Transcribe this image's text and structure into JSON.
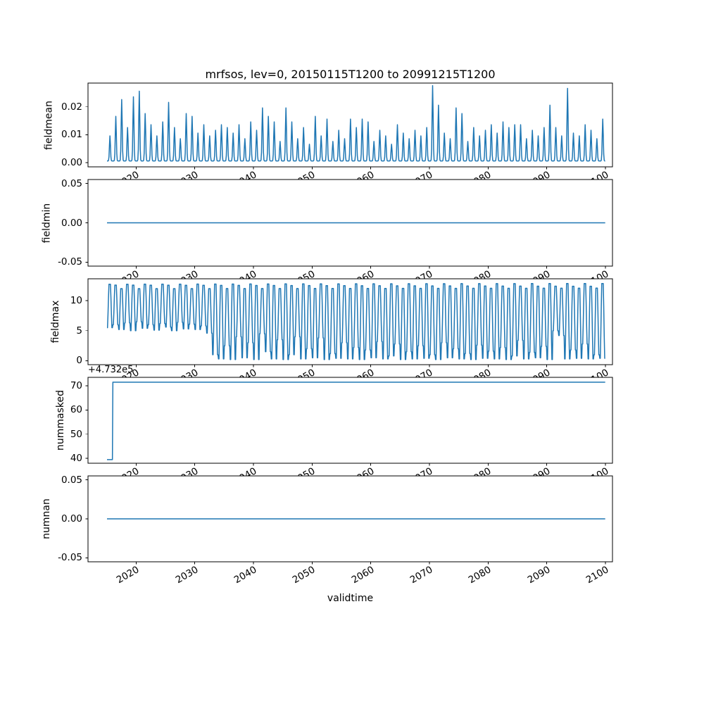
{
  "figure": {
    "title": "mrfsos, lev=0, 20150115T1200 to 20991215T1200",
    "xlabel": "validtime",
    "line_color": "#1f77b4",
    "background": "#ffffff"
  },
  "x_axis": {
    "xlim": [
      2011.8,
      2101.2
    ],
    "ticks": [
      2020,
      2030,
      2040,
      2050,
      2060,
      2070,
      2080,
      2090,
      2100
    ],
    "tick_labels": [
      "2020",
      "2030",
      "2040",
      "2050",
      "2060",
      "2070",
      "2080",
      "2090",
      "2100"
    ]
  },
  "chart_data": [
    {
      "type": "line",
      "name": "fieldmean",
      "ylabel": "fieldmean",
      "ylim": [
        -0.0015,
        0.0285
      ],
      "yticks": [
        0.0,
        0.01,
        0.02
      ],
      "ytick_labels": [
        "0.00",
        "0.01",
        "0.02"
      ],
      "x_start": 2015,
      "gen": "annual_spikes",
      "baseline": 0.0006,
      "center_month": 6,
      "sigma_months": 1.05,
      "peaks": [
        0.009,
        0.016,
        0.022,
        0.012,
        0.023,
        0.025,
        0.017,
        0.013,
        0.009,
        0.014,
        0.021,
        0.012,
        0.008,
        0.017,
        0.016,
        0.01,
        0.013,
        0.009,
        0.011,
        0.013,
        0.012,
        0.01,
        0.013,
        0.008,
        0.014,
        0.011,
        0.019,
        0.016,
        0.014,
        0.007,
        0.019,
        0.014,
        0.008,
        0.012,
        0.006,
        0.016,
        0.009,
        0.015,
        0.007,
        0.011,
        0.008,
        0.015,
        0.012,
        0.015,
        0.014,
        0.007,
        0.011,
        0.009,
        0.006,
        0.013,
        0.01,
        0.008,
        0.011,
        0.009,
        0.012,
        0.027,
        0.02,
        0.01,
        0.008,
        0.019,
        0.017,
        0.007,
        0.012,
        0.009,
        0.011,
        0.013,
        0.01,
        0.014,
        0.012,
        0.013,
        0.013,
        0.008,
        0.011,
        0.009,
        0.012,
        0.02,
        0.012,
        0.009,
        0.026,
        0.01,
        0.009,
        0.013,
        0.011,
        0.008,
        0.015
      ]
    },
    {
      "type": "line",
      "name": "fieldmin",
      "ylabel": "fieldmin",
      "ylim": [
        -0.055,
        0.055
      ],
      "yticks": [
        -0.05,
        0.0,
        0.05
      ],
      "ytick_labels": [
        "-0.05",
        "0.00",
        "0.05"
      ],
      "points": [
        [
          2015.04,
          0.0
        ],
        [
          2099.96,
          0.0
        ]
      ]
    },
    {
      "type": "line",
      "name": "fieldmax",
      "ylabel": "fieldmax",
      "ylim": [
        -0.65,
        13.65
      ],
      "yticks": [
        0,
        5,
        10
      ],
      "ytick_labels": [
        "0",
        "5",
        "10"
      ],
      "x_start": 2015,
      "gen": "annual_wave",
      "wave_gain": 1.5,
      "wave_offset": 0.25,
      "peak_base": 12.45,
      "peak_amp": 0.45,
      "peak_freq": 2.1,
      "peak_phase": 0.7,
      "troughs": [
        5.5,
        6.0,
        5.2,
        6.3,
        5.0,
        6.5,
        5.4,
        6.0,
        5.1,
        6.2,
        5.6,
        5.0,
        6.4,
        5.3,
        6.1,
        5.2,
        5.8,
        4.6,
        1.0,
        0.3,
        2.5,
        0.2,
        4.0,
        0.5,
        3.0,
        0.2,
        4.5,
        1.5,
        0.3,
        3.5,
        0.2,
        1.0,
        4.0,
        0.3,
        2.0,
        0.5,
        3.8,
        0.2,
        1.2,
        0.4,
        3.0,
        0.3,
        2.2,
        0.2,
        1.8,
        0.5,
        3.2,
        0.3,
        0.8,
        2.8,
        0.2,
        1.5,
        0.3,
        2.5,
        0.4,
        1.0,
        0.2,
        3.0,
        0.5,
        2.0,
        0.3,
        1.2,
        0.2,
        2.6,
        0.4,
        1.6,
        0.3,
        2.2,
        0.2,
        0.8,
        3.4,
        0.3,
        1.4,
        0.5,
        2.4,
        0.2,
        5.0,
        4.2,
        0.3,
        1.8,
        0.4,
        2.8,
        0.3,
        1.0,
        0.4
      ]
    },
    {
      "type": "line",
      "name": "nummasked",
      "ylabel": "nummasked",
      "ylim": [
        473238.0,
        473273.5
      ],
      "yticks": [
        473240,
        473250,
        473260,
        473270
      ],
      "ytick_labels": [
        "40",
        "50",
        "60",
        "70"
      ],
      "offset_text": "+4.732e5",
      "points": [
        [
          2015.04,
          473239.5
        ],
        [
          2015.96,
          473239.5
        ],
        [
          2016.04,
          473271.5
        ],
        [
          2099.96,
          473271.5
        ]
      ]
    },
    {
      "type": "line",
      "name": "numnan",
      "ylabel": "numnan",
      "ylim": [
        -0.055,
        0.055
      ],
      "yticks": [
        -0.05,
        0.0,
        0.05
      ],
      "ytick_labels": [
        "-0.05",
        "0.00",
        "0.05"
      ],
      "points": [
        [
          2015.04,
          0.0
        ],
        [
          2099.96,
          0.0
        ]
      ]
    }
  ]
}
